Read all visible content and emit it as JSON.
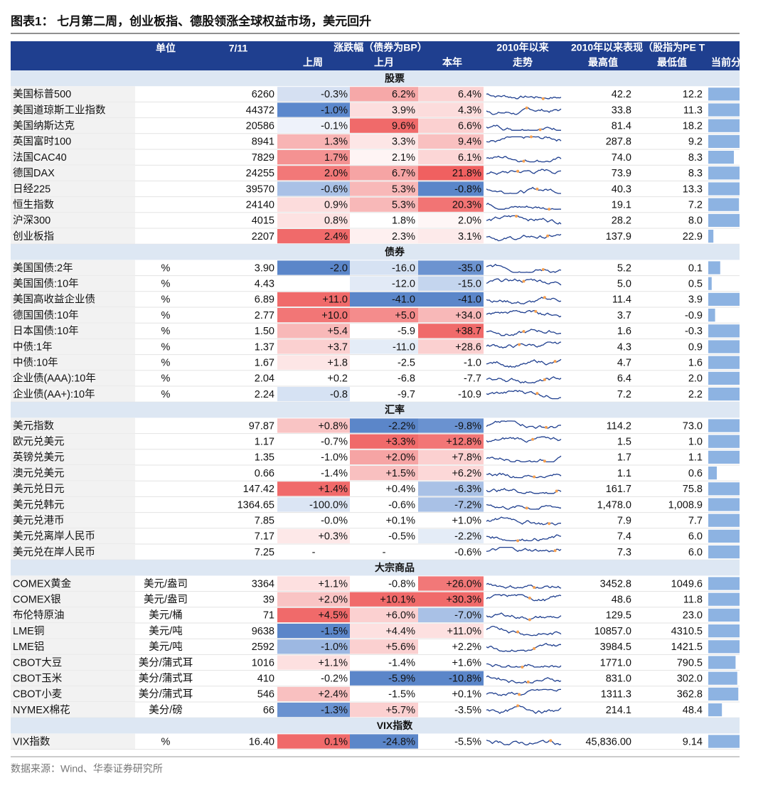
{
  "title": "图表1： 七月第二周，创业板指、德股领涨全球权益市场，美元回升",
  "header": {
    "unit": "单位",
    "date": "7/11",
    "change": "涨跌幅（债券为BP）",
    "trend_top": "2010年以来",
    "since": "2010年以来表现（股指为PE T",
    "week": "上周",
    "month": "上月",
    "year": "本年",
    "trend": "走势",
    "high": "最高值",
    "low": "最低值",
    "current": "当前分"
  },
  "sections": [
    {
      "title": "股票",
      "rows": [
        {
          "cells": [
            "美国标普500",
            "",
            "6260",
            "-0.3%",
            "6.2%",
            "6.4%",
            "42.2",
            "12.2"
          ],
          "colors": [
            "#d5e0f2",
            "#f6a8a8",
            "#fbd3d3"
          ],
          "current": 100
        },
        {
          "cells": [
            "美国道琼斯工业指数",
            "",
            "44372",
            "-1.0%",
            "3.9%",
            "4.3%",
            "33.8",
            "11.3"
          ],
          "colors": [
            "#5c88cc",
            "#fcdede",
            "#fcdcdc"
          ],
          "current": 95
        },
        {
          "cells": [
            "美国纳斯达克",
            "",
            "20586",
            "-0.1%",
            "9.6%",
            "6.6%",
            "81.4",
            "18.2"
          ],
          "colors": [
            "#eef2fa",
            "#f06a6a",
            "#fbd0d0"
          ],
          "current": 100
        },
        {
          "cells": [
            "英国富时100",
            "",
            "8941",
            "1.3%",
            "3.3%",
            "9.4%",
            "287.8",
            "9.2"
          ],
          "colors": [
            "#f8b4b4",
            "#fde6e6",
            "#f9c0c0"
          ],
          "current": 100
        },
        {
          "cells": [
            "法国CAC40",
            "",
            "7829",
            "1.7%",
            "2.1%",
            "6.1%",
            "74.0",
            "8.3"
          ],
          "colors": [
            "#f49292",
            "#fef4f4",
            "#fcd6d6"
          ],
          "current": 75
        },
        {
          "cells": [
            "德国DAX",
            "",
            "24255",
            "2.0%",
            "6.7%",
            "21.8%",
            "73.9",
            "8.3"
          ],
          "colors": [
            "#f27878",
            "#f6a4a4",
            "#f06060"
          ],
          "current": 100
        },
        {
          "cells": [
            "日经225",
            "",
            "39570",
            "-0.6%",
            "5.3%",
            "-0.8%",
            "40.3",
            "13.3"
          ],
          "colors": [
            "#a9c1e6",
            "#f8b8b8",
            "#5b86c9"
          ],
          "current": 100
        },
        {
          "cells": [
            "恒生指数",
            "",
            "24140",
            "0.9%",
            "5.3%",
            "20.3%",
            "19.1",
            "7.2"
          ],
          "colors": [
            "#fcdcdc",
            "#f8b8b8",
            "#f27474"
          ],
          "current": 90
        },
        {
          "cells": [
            "沪深300",
            "",
            "4015",
            "0.8%",
            "1.8%",
            "2.0%",
            "28.2",
            "8.0"
          ],
          "colors": [
            "#fde2e2",
            "#ffffff",
            "#fef6f6"
          ],
          "current": 100
        },
        {
          "cells": [
            "创业板指",
            "",
            "2207",
            "2.4%",
            "2.3%",
            "3.1%",
            "137.9",
            "22.9"
          ],
          "colors": [
            "#f06a6a",
            "#fef0f0",
            "#fdeaea"
          ],
          "current": 15
        }
      ]
    },
    {
      "title": "债券",
      "rows": [
        {
          "cells": [
            "美国国债:2年",
            "%",
            "3.90",
            "-2.0",
            "-16.0",
            "-35.0",
            "5.2",
            "0.1"
          ],
          "colors": [
            "#5b86c9",
            "#d6e2f3",
            "#6c93d0"
          ],
          "current": 35
        },
        {
          "cells": [
            "美国国债:10年",
            "%",
            "4.43",
            "",
            "-12.0",
            "-15.0",
            "5.0",
            "0.5"
          ],
          "colors": [
            "#ffffff",
            "#e2eaf6",
            "#c4d5ee"
          ],
          "current": 10
        },
        {
          "cells": [
            "美国高收益企业债",
            "%",
            "6.89",
            "+11.0",
            "-41.0",
            "-41.0",
            "11.4",
            "3.9"
          ],
          "colors": [
            "#f06a6a",
            "#5b86c9",
            "#5b86c9"
          ],
          "current": 100
        },
        {
          "cells": [
            "德国国债:10年",
            "%",
            "2.77",
            "+10.0",
            "+5.0",
            "+34.0",
            "3.7",
            "-0.9"
          ],
          "colors": [
            "#f27676",
            "#f48c8c",
            "#f8b8b8"
          ],
          "current": 20
        },
        {
          "cells": [
            "日本国债:10年",
            "%",
            "1.50",
            "+5.4",
            "-5.9",
            "+38.7",
            "1.6",
            "-0.3"
          ],
          "colors": [
            "#f8b8b8",
            "#ffffff",
            "#f06a6a"
          ],
          "current": 100
        },
        {
          "cells": [
            "中债:1年",
            "%",
            "1.37",
            "+3.7",
            "-11.0",
            "+28.6",
            "4.3",
            "0.9"
          ],
          "colors": [
            "#fbd0d0",
            "#e4ecf7",
            "#fbd0d0"
          ],
          "current": 100
        },
        {
          "cells": [
            "中债:10年",
            "%",
            "1.67",
            "+1.8",
            "-2.5",
            "-1.0",
            "4.7",
            "1.6"
          ],
          "colors": [
            "#fde6e6",
            "#ffffff",
            "#ffffff"
          ],
          "current": 100
        },
        {
          "cells": [
            "企业债(AAA):10年",
            "%",
            "2.04",
            "+0.2",
            "-6.8",
            "-7.7",
            "6.4",
            "2.0"
          ],
          "colors": [
            "#ffffff",
            "#ffffff",
            "#ffffff"
          ],
          "current": 100
        },
        {
          "cells": [
            "企业债(AA+):10年",
            "%",
            "2.24",
            "-0.8",
            "-9.7",
            "-10.9",
            "7.2",
            "2.2"
          ],
          "colors": [
            "#d6e2f3",
            "#ffffff",
            "#ffffff"
          ],
          "current": 100
        }
      ]
    },
    {
      "title": "汇率",
      "rows": [
        {
          "cells": [
            "美元指数",
            "",
            "97.87",
            "+0.8%",
            "-2.2%",
            "-9.8%",
            "114.2",
            "73.0"
          ],
          "colors": [
            "#f9c4c4",
            "#5b86c9",
            "#6a92d0"
          ],
          "current": 100
        },
        {
          "cells": [
            "欧元兑美元",
            "",
            "1.17",
            "-0.7%",
            "+3.3%",
            "+12.8%",
            "1.5",
            "1.0"
          ],
          "colors": [
            "#ffffff",
            "#f06a6a",
            "#f27676"
          ],
          "current": 100
        },
        {
          "cells": [
            "英镑兑美元",
            "",
            "1.35",
            "-1.0%",
            "+2.0%",
            "+7.8%",
            "1.7",
            "1.1"
          ],
          "colors": [
            "#ffffff",
            "#f6a4a4",
            "#fbd0d0"
          ],
          "current": 100
        },
        {
          "cells": [
            "澳元兑美元",
            "",
            "0.66",
            "-1.4%",
            "+1.5%",
            "+6.2%",
            "1.1",
            "0.6"
          ],
          "colors": [
            "#ffffff",
            "#f9c0c0",
            "#fcd8d8"
          ],
          "current": 25
        },
        {
          "cells": [
            "美元兑日元",
            "",
            "147.42",
            "+1.4%",
            "+0.4%",
            "-6.3%",
            "161.7",
            "75.8"
          ],
          "colors": [
            "#f06a6a",
            "#ffffff",
            "#a9c1e6"
          ],
          "current": 100
        },
        {
          "cells": [
            "美元兑韩元",
            "",
            "1364.65",
            "-100.0%",
            "-0.6%",
            "-7.2%",
            "1,478.0",
            "1,008.9"
          ],
          "colors": [
            "#dbe5f4",
            "#ffffff",
            "#a9c1e6"
          ],
          "current": 100
        },
        {
          "cells": [
            "美元兑港币",
            "",
            "7.85",
            "-0.0%",
            "+0.1%",
            "+1.0%",
            "7.9",
            "7.7"
          ],
          "colors": [
            "#ffffff",
            "#ffffff",
            "#ffffff"
          ],
          "current": 100
        },
        {
          "cells": [
            "美元兑离岸人民币",
            "",
            "7.17",
            "+0.3%",
            "-0.5%",
            "-2.2%",
            "7.4",
            "6.0"
          ],
          "colors": [
            "#fde8e8",
            "#ffffff",
            "#e4ecf7"
          ],
          "current": 100
        },
        {
          "cells": [
            "美元兑在岸人民币",
            "",
            "7.25",
            "-",
            "-",
            "-0.6%",
            "7.3",
            "6.0"
          ],
          "colors": [
            "#ffffff",
            "#ffffff",
            "#ffffff"
          ],
          "current": 100
        }
      ]
    },
    {
      "title": "大宗商品",
      "rows": [
        {
          "cells": [
            "COMEX黄金",
            "美元/盎司",
            "3364",
            "+1.1%",
            "-0.8%",
            "+26.0%",
            "3452.8",
            "1049.6"
          ],
          "colors": [
            "#fde0e0",
            "#ffffff",
            "#f27878"
          ],
          "current": 100
        },
        {
          "cells": [
            "COMEX银",
            "美元/盎司",
            "39",
            "+2.0%",
            "+10.1%",
            "+30.3%",
            "48.6",
            "11.8"
          ],
          "colors": [
            "#f9c4c4",
            "#f06a6a",
            "#f06a6a"
          ],
          "current": 100
        },
        {
          "cells": [
            "布伦特原油",
            "美元/桶",
            "71",
            "+4.5%",
            "+6.0%",
            "-7.0%",
            "129.5",
            "23.0"
          ],
          "colors": [
            "#f06a6a",
            "#fbd0d0",
            "#a9c1e6"
          ],
          "current": 100
        },
        {
          "cells": [
            "LME铜",
            "美元/吨",
            "9638",
            "-1.5%",
            "+4.4%",
            "+11.0%",
            "10857.0",
            "4310.5"
          ],
          "colors": [
            "#5b86c9",
            "#fde0e0",
            "#fde0e0"
          ],
          "current": 100
        },
        {
          "cells": [
            "LME铝",
            "美元/吨",
            "2592",
            "-1.0%",
            "+5.6%",
            "+2.2%",
            "3984.5",
            "1421.5"
          ],
          "colors": [
            "#9db8e2",
            "#fbd0d0",
            "#ffffff"
          ],
          "current": 100
        },
        {
          "cells": [
            "CBOT大豆",
            "美分/蒲式耳",
            "1016",
            "+1.1%",
            "-1.4%",
            "+1.6%",
            "1771.0",
            "790.5"
          ],
          "colors": [
            "#fde0e0",
            "#ffffff",
            "#ffffff"
          ],
          "current": 80
        },
        {
          "cells": [
            "CBOT玉米",
            "美分/蒲式耳",
            "410",
            "-0.2%",
            "-5.9%",
            "-10.8%",
            "831.0",
            "302.0"
          ],
          "colors": [
            "#ffffff",
            "#5b86c9",
            "#5b86c9"
          ],
          "current": 85
        },
        {
          "cells": [
            "CBOT小麦",
            "美分/蒲式耳",
            "546",
            "+2.4%",
            "-1.5%",
            "+0.1%",
            "1311.3",
            "362.8"
          ],
          "colors": [
            "#f9c0c0",
            "#ffffff",
            "#ffffff"
          ],
          "current": 88
        },
        {
          "cells": [
            "NYMEX棉花",
            "美分/磅",
            "66",
            "-1.3%",
            "+5.7%",
            "-3.5%",
            "214.1",
            "48.4"
          ],
          "colors": [
            "#6a92d0",
            "#fbd0d0",
            "#ffffff"
          ],
          "current": 40
        }
      ]
    },
    {
      "title": "VIX指数",
      "rows": [
        {
          "cells": [
            "VIX指数",
            "%",
            "16.40",
            "0.1%",
            "-24.8%",
            "-5.5%",
            "45,836.00",
            "9.14"
          ],
          "colors": [
            "#f06a6a",
            "#5b86c9",
            "#ffffff"
          ],
          "current": 100
        }
      ]
    }
  ],
  "source": "数据来源：Wind、华泰证券研究所"
}
